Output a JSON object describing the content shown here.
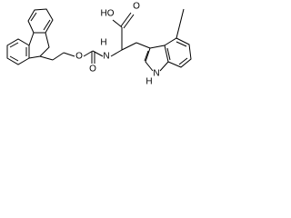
{
  "atoms": [
    {
      "label": "HO"
    },
    {
      "label": "O"
    },
    {
      "label": "O"
    },
    {
      "label": "O"
    },
    {
      "label": "H"
    },
    {
      "label": "N"
    },
    {
      "label": "H"
    },
    {
      "label": "N"
    }
  ]
}
